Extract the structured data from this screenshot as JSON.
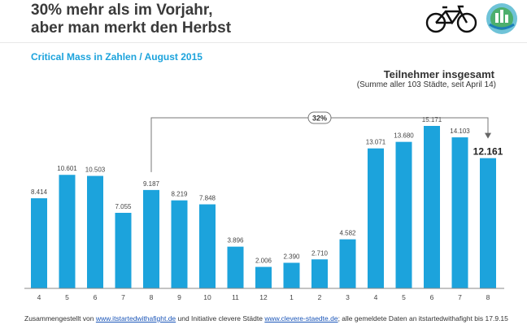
{
  "header": {
    "title_line1": "30% mehr als im Vorjahr,",
    "title_line2": "aber man merkt den Herbst",
    "subtitle": "Critical Mass in Zahlen / August 2015",
    "icons": [
      "bicycle-icon",
      "clevere-staedte-logo"
    ]
  },
  "side": {
    "title": "Teilnehmer insgesamt",
    "subtitle": "(Summe aller 103 Städte, seit April 14)"
  },
  "footer": {
    "text1": "Zusammengestellt von ",
    "link1": "www.itstartedwithafight.de",
    "text2": " und Initiative clevere Städte ",
    "link2": "www.clevere-staedte.de",
    "text3": "; alle gemeldete Daten an itstartedwithafight bis 17.9.15"
  },
  "chart_data": {
    "type": "bar",
    "categories": [
      "4",
      "5",
      "6",
      "7",
      "8",
      "9",
      "10",
      "11",
      "12",
      "1",
      "2",
      "3",
      "4",
      "5",
      "6",
      "7",
      "8"
    ],
    "values": [
      8414,
      10601,
      10503,
      7055,
      9187,
      8219,
      7848,
      3896,
      2006,
      2390,
      2710,
      4582,
      13071,
      13680,
      15171,
      14103,
      12161
    ],
    "value_labels": [
      "8.414",
      "10.601",
      "10.503",
      "7.055",
      "9.187",
      "8.219",
      "7.848",
      "3.896",
      "2.006",
      "2.390",
      "2.710",
      "4.582",
      "13.071",
      "13.680",
      "15.171",
      "14.103",
      "12.161"
    ],
    "highlight_index": 16,
    "annotation": {
      "label": "32%",
      "from_index": 4,
      "to_index": 16
    },
    "bar_color": "#1ca3dc",
    "grid": false,
    "ylim": [
      0,
      16000
    ]
  }
}
